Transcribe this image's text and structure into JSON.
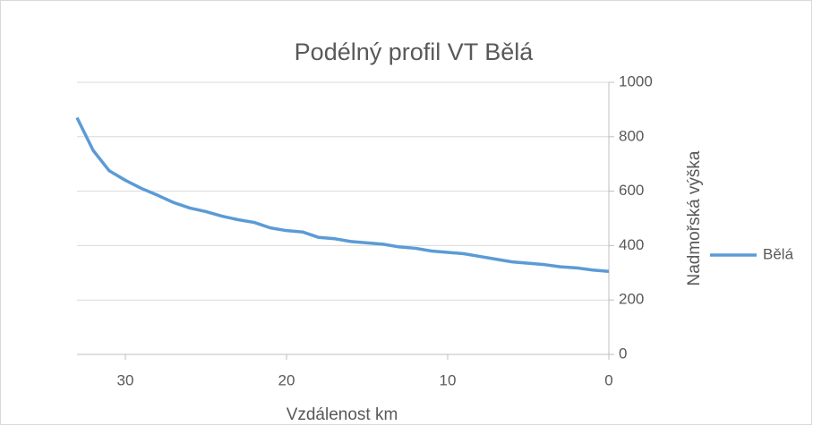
{
  "chart_data": {
    "type": "line",
    "title": "Podélný profil VT Bělá",
    "x_label": "Vzdálenost km",
    "y_label": "Nadmořská výška",
    "x": [
      33,
      32,
      31,
      30,
      29,
      28,
      27,
      26,
      25,
      24,
      23,
      22,
      21,
      20,
      19,
      18,
      17,
      16,
      15,
      14,
      13,
      12,
      11,
      10,
      9,
      8,
      7,
      6,
      5,
      4,
      3,
      2,
      1,
      0
    ],
    "series": [
      {
        "name": "Bělá",
        "color": "#5b9bd5",
        "values": [
          870,
          750,
          675,
          640,
          610,
          585,
          558,
          538,
          525,
          508,
          495,
          485,
          465,
          455,
          450,
          430,
          425,
          415,
          410,
          405,
          395,
          390,
          380,
          375,
          370,
          360,
          350,
          340,
          335,
          330,
          322,
          318,
          310,
          305
        ]
      }
    ],
    "xlim": [
      33,
      0
    ],
    "xticks": [
      30,
      20,
      10,
      0
    ],
    "ylim": [
      0,
      1000
    ],
    "yticks": [
      0,
      200,
      400,
      600,
      800,
      1000
    ],
    "grid": true,
    "legend": "right",
    "y_axis_side": "right"
  }
}
